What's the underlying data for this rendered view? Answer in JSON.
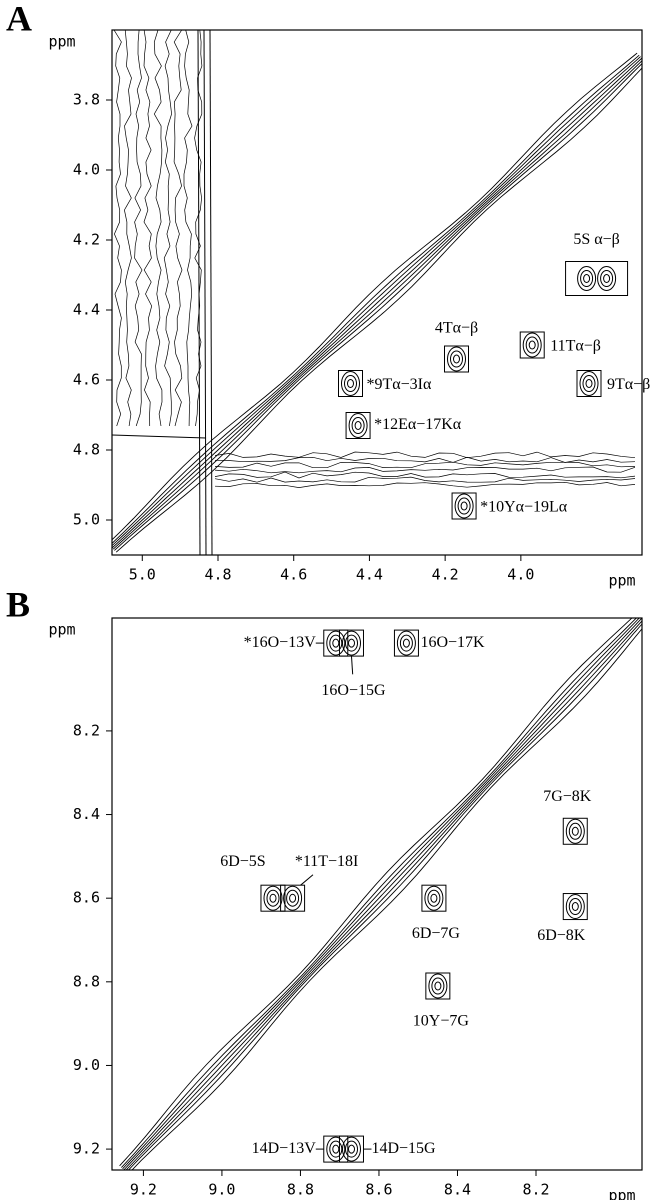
{
  "chart_data": [
    {
      "type": "contour",
      "title": "A",
      "xlabel": "ppm",
      "ylabel": "ppm",
      "xlim": [
        5.08,
        3.68
      ],
      "ylim": [
        3.6,
        5.1
      ],
      "xticks": [
        {
          "value": 5,
          "label": "5.0"
        },
        4.8,
        4.6,
        4.4,
        4.2,
        {
          "value": 4,
          "label": "4.0"
        }
      ],
      "yticks": [
        3.8,
        {
          "value": 4,
          "label": "4.0"
        },
        4.2,
        4.4,
        4.6,
        4.8,
        {
          "value": 5,
          "label": "5.0"
        }
      ],
      "peaks": [
        {
          "label": "5S α−β",
          "x": 3.8,
          "y": 4.31
        },
        {
          "label": "4Tα−β",
          "x": 4.17,
          "y": 4.54
        },
        {
          "label": "11Tα−β",
          "x": 3.97,
          "y": 4.5
        },
        {
          "label": "9Tα−β",
          "x": 3.82,
          "y": 4.61
        },
        {
          "label": "*9Tα−3Iα",
          "x": 4.45,
          "y": 4.61
        },
        {
          "label": "*12Eα−17Kα",
          "x": 4.43,
          "y": 4.73
        },
        {
          "label": "*10Yα−19Lα",
          "x": 4.15,
          "y": 4.96
        }
      ]
    },
    {
      "type": "contour",
      "title": "B",
      "xlabel": "ppm",
      "ylabel": "ppm",
      "xlim": [
        9.28,
        7.93
      ],
      "ylim": [
        7.93,
        9.25
      ],
      "xticks": [
        9.2,
        {
          "value": 9,
          "label": "9.0"
        },
        8.8,
        8.6,
        8.4,
        8.2
      ],
      "yticks": [
        8.2,
        8.4,
        8.6,
        8.8,
        {
          "value": 9,
          "label": "9.0"
        },
        9.2
      ],
      "peaks": [
        {
          "label": "*16O−13V",
          "x": 8.71,
          "y": 7.99
        },
        {
          "label": "16O−15G",
          "x": 8.67,
          "y": 7.99
        },
        {
          "label": "16O−17K",
          "x": 8.53,
          "y": 7.99
        },
        {
          "label": "7G−8K",
          "x": 8.1,
          "y": 8.44
        },
        {
          "label": "6D−5S",
          "x": 8.87,
          "y": 8.6
        },
        {
          "label": "*11T−18I",
          "x": 8.82,
          "y": 8.6
        },
        {
          "label": "6D−7G",
          "x": 8.46,
          "y": 8.6
        },
        {
          "label": "6D−8K",
          "x": 8.1,
          "y": 8.62
        },
        {
          "label": "10Y−7G",
          "x": 8.45,
          "y": 8.81
        },
        {
          "label": "14D−13V",
          "x": 8.71,
          "y": 9.2
        },
        {
          "label": "14D−15G",
          "x": 8.67,
          "y": 9.2
        }
      ]
    }
  ]
}
